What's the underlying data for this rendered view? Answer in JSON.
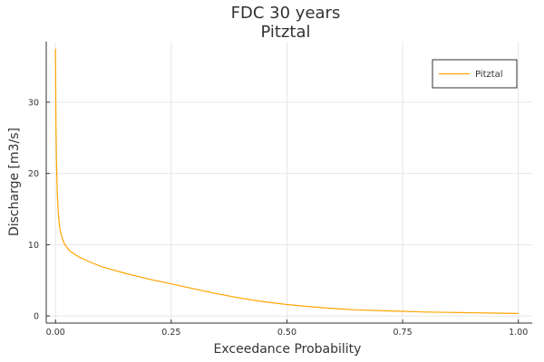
{
  "chart_data": {
    "type": "line",
    "title": "FDC 30 years",
    "subtitle": "Pitztal",
    "xlabel": "Exceedance Probability",
    "ylabel": "Discharge [m3/s]",
    "xlim": [
      -0.02,
      1.03
    ],
    "ylim": [
      -1,
      38.5
    ],
    "xticks": [
      0.0,
      0.25,
      0.5,
      0.75,
      1.0
    ],
    "xtick_labels": [
      "0.00",
      "0.25",
      "0.50",
      "0.75",
      "1.00"
    ],
    "yticks": [
      0,
      10,
      20,
      30
    ],
    "ytick_labels": [
      "0",
      "10",
      "20",
      "30"
    ],
    "grid": true,
    "legend_position": "top-right",
    "series": [
      {
        "name": "Pitztal",
        "color": "#FFA500",
        "x": [
          0.0,
          0.001,
          0.002,
          0.004,
          0.006,
          0.008,
          0.01,
          0.015,
          0.02,
          0.03,
          0.04,
          0.05,
          0.07,
          0.1,
          0.15,
          0.2,
          0.25,
          0.3,
          0.35,
          0.4,
          0.45,
          0.5,
          0.55,
          0.6,
          0.65,
          0.7,
          0.75,
          0.8,
          0.85,
          0.9,
          0.95,
          1.0
        ],
        "y": [
          37.5,
          27.0,
          22.0,
          17.0,
          14.5,
          13.0,
          12.0,
          10.8,
          10.0,
          9.2,
          8.7,
          8.3,
          7.7,
          6.9,
          6.0,
          5.2,
          4.5,
          3.8,
          3.1,
          2.5,
          2.0,
          1.6,
          1.3,
          1.05,
          0.85,
          0.75,
          0.65,
          0.55,
          0.5,
          0.45,
          0.4,
          0.35
        ]
      }
    ]
  }
}
